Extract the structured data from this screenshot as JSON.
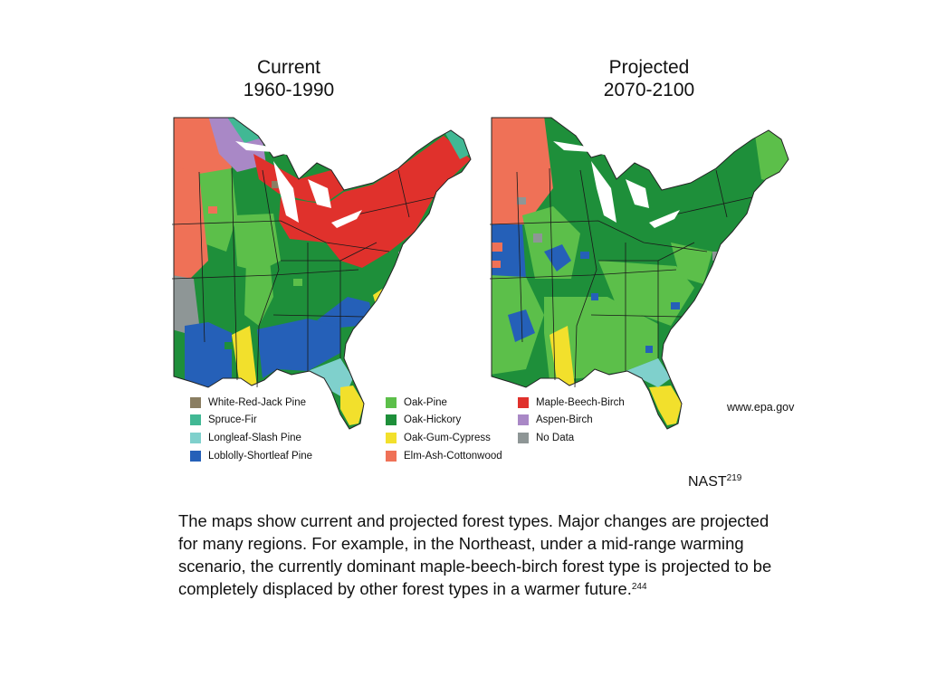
{
  "maps": {
    "current": {
      "title_line1": "Current",
      "title_line2": "1960-1990"
    },
    "projected": {
      "title_line1": "Projected",
      "title_line2": "2070-2100"
    }
  },
  "legend": [
    {
      "label": "White-Red-Jack Pine",
      "color": "#8a7e62"
    },
    {
      "label": "Spruce-Fir",
      "color": "#41b894"
    },
    {
      "label": "Longleaf-Slash Pine",
      "color": "#7fd0cc"
    },
    {
      "label": "Loblolly-Shortleaf Pine",
      "color": "#2560b8"
    },
    {
      "label": "Oak-Pine",
      "color": "#5cbf4a"
    },
    {
      "label": "Oak-Hickory",
      "color": "#1e8f3a"
    },
    {
      "label": "Oak-Gum-Cypress",
      "color": "#f2e02c"
    },
    {
      "label": "Elm-Ash-Cottonwood",
      "color": "#ef7157"
    },
    {
      "label": "Maple-Beech-Birch",
      "color": "#e0312c"
    },
    {
      "label": "Aspen-Birch",
      "color": "#a988c6"
    },
    {
      "label": "No Data",
      "color": "#8e9696"
    }
  ],
  "source": "www.epa.gov",
  "citation": {
    "text": "NAST",
    "ref": "219"
  },
  "caption": {
    "text": "The maps show current and projected forest types. Major changes are projected for many regions. For example, in the Northeast, under a mid-range warming scenario, the currently dominant maple-beech-birch forest type is projected to be completely displaced by other forest types in a warmer future.",
    "ref": "244"
  }
}
